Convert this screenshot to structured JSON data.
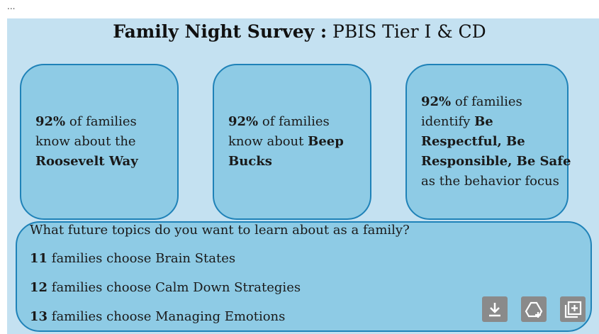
{
  "header": {
    "corner": "...",
    "title_bold": "Family Night Survey :",
    "title_rest": " PBIS Tier I & CD"
  },
  "cards": [
    {
      "lines": [
        [
          {
            "text": "92%",
            "bold": true
          },
          {
            "text": " of families"
          }
        ],
        [
          {
            "text": "know about the"
          }
        ],
        [
          {
            "text": "Roosevelt Way",
            "bold": true
          }
        ]
      ]
    },
    {
      "lines": [
        [
          {
            "text": "92%",
            "bold": true
          },
          {
            "text": " of families"
          }
        ],
        [
          {
            "text": "know about "
          },
          {
            "text": "Beep",
            "bold": true
          }
        ],
        [
          {
            "text": "Bucks",
            "bold": true
          }
        ]
      ]
    },
    {
      "lines": [
        [
          {
            "text": "92%",
            "bold": true
          },
          {
            "text": " of families"
          }
        ],
        [
          {
            "text": "identify "
          },
          {
            "text": "Be",
            "bold": true
          }
        ],
        [
          {
            "text": "Respectful, Be",
            "bold": true
          }
        ],
        [
          {
            "text": "Responsible, Be Safe",
            "bold": true
          }
        ],
        [
          {
            "text": "as the behavior focus"
          }
        ]
      ]
    }
  ],
  "topics": {
    "question": "What future topics do you want to learn about as a family?",
    "items": [
      [
        {
          "text": "11",
          "bold": true
        },
        {
          "text": " families choose Brain States"
        }
      ],
      [
        {
          "text": "12",
          "bold": true
        },
        {
          "text": " families choose Calm Down Strategies"
        }
      ],
      [
        {
          "text": "13",
          "bold": true
        },
        {
          "text": " families choose Managing Emotions"
        }
      ]
    ]
  }
}
